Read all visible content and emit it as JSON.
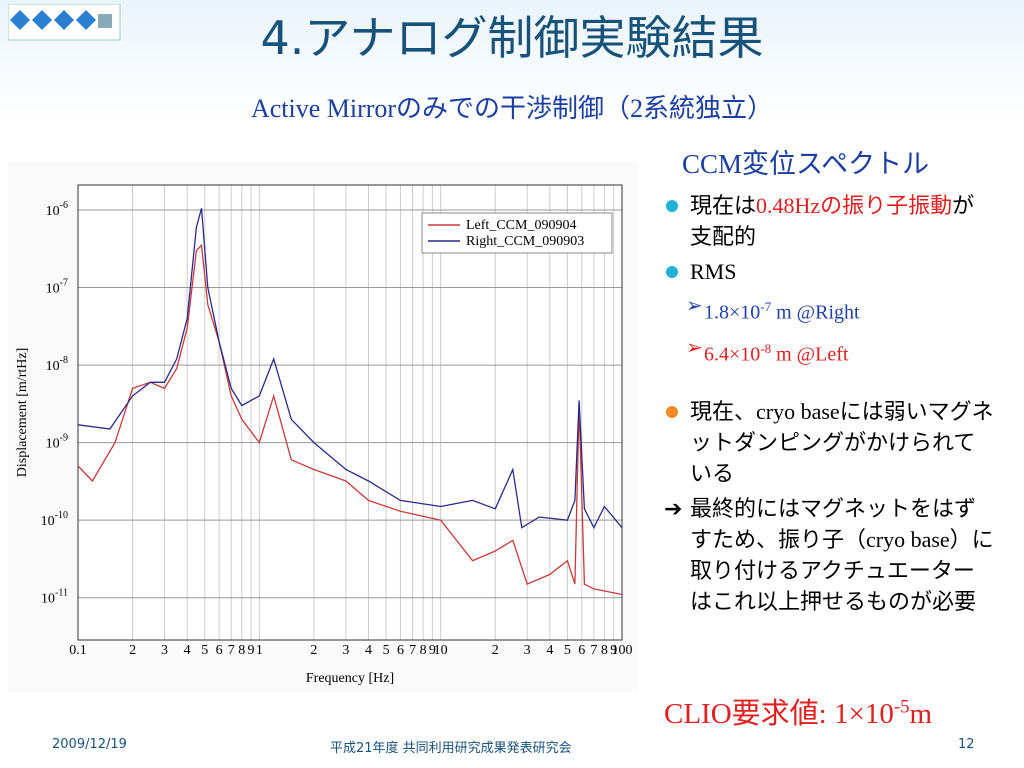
{
  "header": {
    "title": "4.アナログ制御実験結果",
    "subtitle": "Active Mirrorのみでの干渉制御（2系統独立）"
  },
  "chart": {
    "type": "line",
    "x_label": "Frequency [Hz]",
    "y_label": "Displacement [m/rtHz]",
    "log_x": true,
    "log_y": true,
    "grid": true,
    "xlim": [
      0.1,
      100
    ],
    "ylim": [
      2.85e-12,
      2.1e-06
    ],
    "xticks": [
      0.1,
      {
        "value": 0.2,
        "label": "2"
      },
      {
        "value": 0.3,
        "label": "3"
      },
      {
        "value": 0.4,
        "label": "4"
      },
      {
        "value": 0.5,
        "label": "5"
      },
      {
        "value": 0.6,
        "label": "6"
      },
      {
        "value": 0.7,
        "label": "7"
      },
      {
        "value": 0.8,
        "label": "8"
      },
      {
        "value": 0.9,
        "label": "9"
      },
      1,
      2,
      3,
      4,
      5,
      6,
      7,
      8,
      9,
      10,
      {
        "value": 20,
        "label": "2"
      },
      {
        "value": 30,
        "label": "3"
      },
      {
        "value": 40,
        "label": "4"
      },
      {
        "value": 50,
        "label": "5"
      },
      {
        "value": 60,
        "label": "6"
      },
      {
        "value": 70,
        "label": "7"
      },
      {
        "value": 80,
        "label": "8"
      },
      {
        "value": 90,
        "label": "9"
      },
      100
    ],
    "yticks": [
      {
        "value": 1e-11,
        "label": "10",
        "exponent": "-11"
      },
      {
        "value": 1e-10,
        "label": "10",
        "exponent": "-10"
      },
      {
        "value": 1e-09,
        "label": "10",
        "exponent": "-9"
      },
      {
        "value": 1e-08,
        "label": "10",
        "exponent": "-8"
      },
      {
        "value": 1e-07,
        "label": "10",
        "exponent": "-7"
      },
      {
        "value": 1e-06,
        "label": "10",
        "exponent": "-6"
      }
    ],
    "legend": "upper right",
    "series": [
      {
        "name": "Left_CCM_090904",
        "color": "#c83a3a",
        "x": [
          0.1,
          0.12,
          0.16,
          0.2,
          0.25,
          0.3,
          0.35,
          0.4,
          0.45,
          0.48,
          0.52,
          0.6,
          0.7,
          0.8,
          1.0,
          1.2,
          1.5,
          2,
          3,
          4,
          6,
          10,
          15,
          20,
          25,
          30,
          40,
          50,
          55,
          58,
          62,
          70,
          100
        ],
        "values": [
          5e-10,
          3.2e-10,
          1e-09,
          5e-09,
          6e-09,
          5e-09,
          9e-09,
          3e-08,
          3e-07,
          3.5e-07,
          6e-08,
          2e-08,
          4e-09,
          2e-09,
          1e-09,
          4e-09,
          6e-10,
          4.5e-10,
          3.2e-10,
          1.8e-10,
          1.3e-10,
          1e-10,
          3e-11,
          4e-11,
          5.5e-11,
          1.5e-11,
          2e-11,
          3e-11,
          1.5e-11,
          3e-09,
          1.5e-11,
          1.3e-11,
          1.1e-11
        ]
      },
      {
        "name": "Right_CCM_090903",
        "color": "#2a2a8a",
        "x": [
          0.1,
          0.15,
          0.2,
          0.25,
          0.3,
          0.35,
          0.4,
          0.45,
          0.48,
          0.52,
          0.6,
          0.7,
          0.8,
          1.0,
          1.2,
          1.5,
          2,
          3,
          4,
          6,
          10,
          15,
          20,
          25,
          28,
          35,
          50,
          55,
          58,
          62,
          70,
          80,
          100
        ],
        "values": [
          1.7e-09,
          1.5e-09,
          4e-09,
          6e-09,
          6e-09,
          1.2e-08,
          4e-08,
          6e-07,
          1.05e-06,
          1e-07,
          2e-08,
          5e-09,
          3e-09,
          4e-09,
          1.2e-08,
          2e-09,
          1e-09,
          4.5e-10,
          3.2e-10,
          1.8e-10,
          1.5e-10,
          1.8e-10,
          1.4e-10,
          4.5e-10,
          8e-11,
          1.1e-10,
          1e-10,
          1.8e-10,
          3.5e-09,
          1.4e-10,
          8e-11,
          1.5e-10,
          8e-11
        ]
      }
    ]
  },
  "panel": {
    "heading": "CCM変位スペクトル",
    "items": [
      {
        "level": 1,
        "bullet_color": "#22b0d8",
        "segments": [
          {
            "text": "現在は"
          },
          {
            "text": "0.48Hzの振り子振動",
            "color": "#e02020"
          },
          {
            "text": "が支配的"
          }
        ]
      },
      {
        "level": 1,
        "bullet_color": "#22b0d8",
        "segments": [
          {
            "text": "RMS"
          }
        ]
      },
      {
        "level": 2,
        "color": "#1f3fa8",
        "segments": [
          {
            "text": "1.8×10"
          },
          {
            "text": "-7",
            "sup": true
          },
          {
            "text": " m @Right"
          }
        ]
      },
      {
        "level": 2,
        "color": "#e02020",
        "segments": [
          {
            "text": "6.4×10"
          },
          {
            "text": "-8",
            "sup": true
          },
          {
            "text": " m @Left"
          }
        ]
      },
      {
        "level": 1,
        "bullet_color": "#f08a24",
        "segments": [
          {
            "text": "現在、cryo baseには弱いマグネットダンピングがかけられている"
          }
        ]
      },
      {
        "level": 0,
        "segments": [
          {
            "text": "最終的にはマグネットをはずすため、振り子（cryo base）に取り付けるアクチュエーターはこれ以上押せるものが必要"
          }
        ]
      }
    ],
    "requirement": [
      {
        "text": "CLIO要求値: 1×10"
      },
      {
        "text": "-5",
        "sup": true
      },
      {
        "text": "m"
      }
    ]
  },
  "footer": {
    "date": "2009/12/19",
    "event": "平成21年度 共同利用研究成果発表研究会",
    "page": "12"
  }
}
